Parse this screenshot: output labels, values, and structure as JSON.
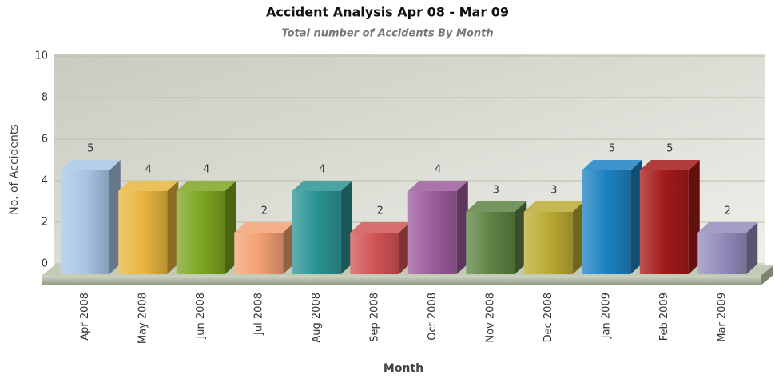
{
  "chart_data": {
    "type": "bar3d",
    "title": "Accident Analysis Apr 08 - Mar 09",
    "subtitle": "Total number of Accidents By Month",
    "y_label": "No. of Accidents",
    "x_label": "Month",
    "categories": [
      "Apr 2008",
      "May 2008",
      "Jun 2008",
      "Jul 2008",
      "Aug 2008",
      "Sep 2008",
      "Oct 2008",
      "Nov 2008",
      "Dec 2008",
      "Jan 2009",
      "Feb 2009",
      "Mar 2009"
    ],
    "values": [
      5,
      4,
      4,
      2,
      4,
      2,
      4,
      3,
      3,
      5,
      5,
      2
    ],
    "colors": [
      "#a9c6e4",
      "#e8b63e",
      "#7da622",
      "#f2a274",
      "#2b9393",
      "#d25454",
      "#9c5c9c",
      "#5d8444",
      "#bbab33",
      "#1c82c2",
      "#a31a1a",
      "#948cbb"
    ],
    "ylim": [
      0,
      10
    ],
    "yticks": [
      0,
      2,
      4,
      6,
      8,
      10
    ],
    "grid": true
  }
}
